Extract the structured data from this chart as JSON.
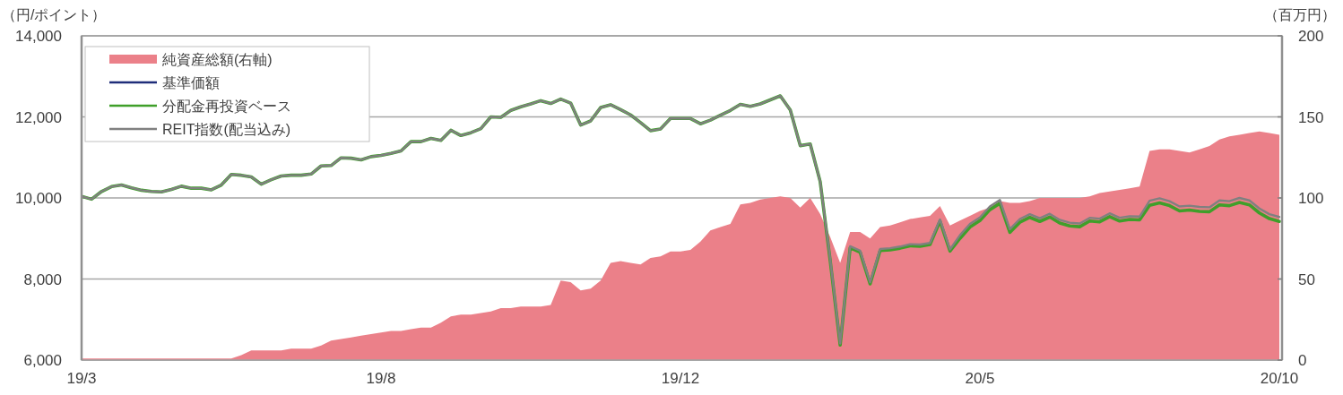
{
  "chart_data": {
    "type": "line",
    "ylabel": "（円/ポイント）",
    "y2label": "（百万円）",
    "categories": [
      "19/3",
      null,
      null,
      null,
      null,
      null,
      null,
      null,
      null,
      null,
      null,
      null,
      null,
      null,
      null,
      null,
      null,
      null,
      null,
      null,
      null,
      null,
      null,
      null,
      null,
      null,
      null,
      null,
      null,
      null,
      "19/8",
      null,
      null,
      null,
      null,
      null,
      null,
      null,
      null,
      null,
      null,
      null,
      null,
      null,
      null,
      null,
      null,
      null,
      null,
      null,
      null,
      null,
      null,
      null,
      null,
      null,
      null,
      null,
      null,
      null,
      "19/12",
      null,
      null,
      null,
      null,
      null,
      null,
      null,
      null,
      null,
      null,
      null,
      null,
      null,
      null,
      null,
      null,
      null,
      null,
      null,
      null,
      null,
      null,
      null,
      null,
      null,
      null,
      null,
      null,
      null,
      "20/5",
      null,
      null,
      null,
      null,
      null,
      null,
      null,
      null,
      null,
      null,
      null,
      null,
      null,
      null,
      null,
      null,
      null,
      null,
      null,
      null,
      null,
      null,
      null,
      null,
      null,
      null,
      null,
      null,
      null,
      "20/10"
    ],
    "ylim": [
      6000,
      14000
    ],
    "yticks": [
      {
        "value": 6000,
        "label": "6,000"
      },
      {
        "value": 8000,
        "label": "8,000"
      },
      {
        "value": 10000,
        "label": "10,000"
      },
      {
        "value": 12000,
        "label": "12,000"
      },
      {
        "value": 14000,
        "label": "14,000"
      }
    ],
    "y2lim": [
      0,
      200
    ],
    "y2ticks": [
      0,
      50,
      100,
      150,
      200
    ],
    "grid": "y",
    "legend": "top left",
    "series": [
      {
        "name": "純資産総額(右軸)",
        "type": "area",
        "axis": "y2",
        "color": "#eb8089",
        "values": [
          1,
          1,
          1,
          1,
          1,
          1,
          1,
          1,
          1,
          1,
          1,
          1,
          1,
          1,
          1,
          1,
          3,
          6,
          6,
          6,
          6,
          7,
          7,
          7,
          9,
          12,
          13,
          14,
          15,
          16,
          17,
          18,
          18,
          19,
          20,
          20,
          23,
          27,
          28,
          28,
          29,
          30,
          32,
          32,
          33,
          33,
          33,
          34,
          49,
          48,
          43,
          44,
          49,
          60,
          61,
          60,
          59,
          63,
          64,
          67,
          67,
          68,
          73,
          80,
          82,
          84,
          96,
          97,
          99,
          100,
          101,
          100,
          94,
          100,
          90,
          76,
          60,
          79,
          79,
          75,
          82,
          83,
          85,
          87,
          88,
          89,
          95,
          83,
          86,
          89,
          92,
          94,
          98,
          97,
          97,
          98,
          100,
          100,
          100,
          100,
          100,
          101,
          103,
          104,
          105,
          106,
          107,
          129,
          130,
          130,
          129,
          128,
          130,
          132,
          136,
          138,
          139,
          140,
          141,
          140,
          139
        ]
      },
      {
        "name": "基準価額",
        "color": "#1f2d7a",
        "values": [
          null,
          null,
          null,
          null,
          null,
          null,
          null,
          null,
          null,
          null,
          null,
          null,
          null,
          null,
          null,
          null,
          null,
          null,
          null,
          null,
          null,
          null,
          null,
          null,
          null,
          null,
          null,
          null,
          null,
          null,
          null,
          null,
          null,
          null,
          null,
          null,
          null,
          null,
          null,
          null,
          null,
          null,
          null,
          null,
          null,
          null,
          null,
          null,
          null,
          null,
          null,
          null,
          null,
          null,
          null,
          null,
          null,
          null,
          null,
          null,
          null,
          null,
          null,
          null,
          null,
          null,
          null,
          null,
          null,
          null,
          null,
          null,
          null,
          null,
          null,
          null,
          null,
          null,
          null,
          null,
          null,
          null,
          null,
          null,
          null,
          null,
          null,
          null,
          null,
          null,
          null,
          null,
          null,
          null,
          null,
          null,
          null,
          null,
          null,
          null,
          null,
          null,
          null,
          null,
          null,
          null,
          null,
          null,
          null,
          null,
          null,
          null,
          null,
          null,
          null,
          null,
          null,
          null,
          null,
          null,
          null
        ]
      },
      {
        "name": "分配金再投資ベース",
        "color": "#3f9f2a",
        "values": [
          10040,
          9970,
          10160,
          10280,
          10320,
          10250,
          10190,
          10160,
          10150,
          10210,
          10290,
          10240,
          10240,
          10200,
          10320,
          10580,
          10560,
          10520,
          10340,
          10450,
          10540,
          10560,
          10560,
          10590,
          10790,
          10800,
          10990,
          10980,
          10940,
          11020,
          11050,
          11100,
          11160,
          11390,
          11390,
          11470,
          11420,
          11670,
          11540,
          11610,
          11710,
          12000,
          11990,
          12160,
          12250,
          12320,
          12400,
          12330,
          12440,
          12340,
          11800,
          11900,
          12230,
          12300,
          12180,
          12050,
          11860,
          11660,
          11700,
          11960,
          11960,
          11960,
          11830,
          11920,
          12040,
          12160,
          12310,
          12260,
          12320,
          12420,
          12520,
          12170,
          11290,
          11330,
          10400,
          8460,
          6370,
          8770,
          8660,
          7880,
          8700,
          8720,
          8760,
          8820,
          8810,
          8850,
          9430,
          8690,
          9000,
          9280,
          9440,
          9710,
          9870,
          9150,
          9400,
          9520,
          9420,
          9530,
          9380,
          9310,
          9290,
          9430,
          9410,
          9540,
          9430,
          9470,
          9460,
          9820,
          9880,
          9810,
          9680,
          9700,
          9670,
          9660,
          9830,
          9810,
          9890,
          9830,
          9630,
          9490,
          9420
        ]
      },
      {
        "name": "REIT指数(配当込み)",
        "color": "#808080",
        "values": [
          10040,
          9970,
          10160,
          10280,
          10320,
          10250,
          10190,
          10160,
          10150,
          10210,
          10290,
          10240,
          10240,
          10200,
          10320,
          10580,
          10560,
          10520,
          10340,
          10450,
          10540,
          10560,
          10560,
          10590,
          10790,
          10800,
          10990,
          10980,
          10940,
          11020,
          11050,
          11100,
          11160,
          11390,
          11390,
          11470,
          11420,
          11670,
          11540,
          11610,
          11710,
          12000,
          11990,
          12160,
          12250,
          12320,
          12400,
          12330,
          12440,
          12340,
          11800,
          11900,
          12230,
          12300,
          12180,
          12050,
          11860,
          11660,
          11700,
          11960,
          11960,
          11960,
          11830,
          11920,
          12040,
          12160,
          12310,
          12260,
          12320,
          12420,
          12520,
          12170,
          11290,
          11330,
          10400,
          8500,
          6410,
          8810,
          8700,
          7920,
          8740,
          8760,
          8800,
          8860,
          8850,
          8890,
          9470,
          8730,
          9080,
          9360,
          9520,
          9790,
          9950,
          9230,
          9480,
          9600,
          9500,
          9610,
          9460,
          9390,
          9370,
          9510,
          9490,
          9620,
          9510,
          9550,
          9540,
          9930,
          9990,
          9920,
          9790,
          9810,
          9780,
          9770,
          9940,
          9920,
          10000,
          9940,
          9740,
          9600,
          9530
        ]
      }
    ]
  }
}
